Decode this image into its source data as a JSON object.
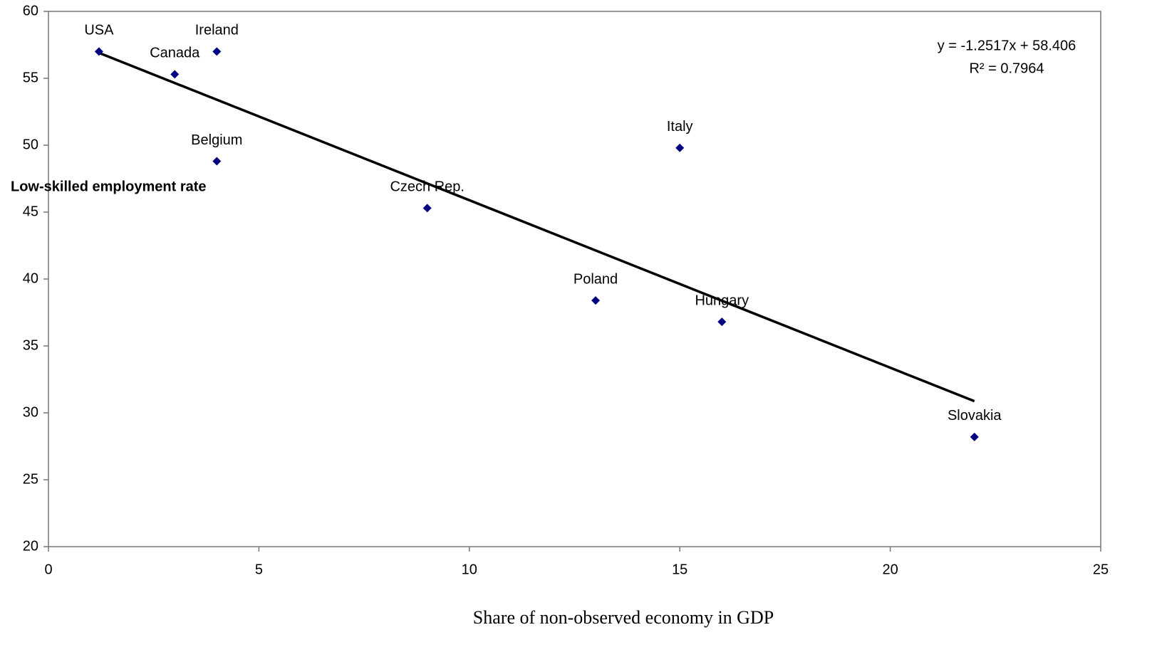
{
  "chart_data": {
    "type": "scatter",
    "x_label": "Share of non-observed economy in GDP",
    "y_label": "Low-skilled employment rate",
    "labels": [
      "USA",
      "Canada",
      "Ireland",
      "Belgium",
      "Czech Rep.",
      "Italy",
      "Poland",
      "Hungary",
      "Slovakia"
    ],
    "x": [
      1.2,
      3,
      4,
      4,
      9,
      15,
      13,
      16,
      22
    ],
    "values": [
      57,
      55.3,
      57,
      48.8,
      45.3,
      49.8,
      38.4,
      36.8,
      28.2
    ],
    "color": "#000080",
    "xlim": [
      0,
      25
    ],
    "xticks": [
      0,
      5,
      10,
      15,
      20,
      25
    ],
    "ylim": [
      20,
      60
    ],
    "yticks": [
      20,
      25,
      30,
      35,
      40,
      45,
      50,
      55,
      60
    ],
    "grid": false,
    "trendline": {
      "slope": -1.2517,
      "intercept": 58.406,
      "equation": "y = -1.2517x + 58.406",
      "r_squared": "R² = 0.7964"
    }
  }
}
